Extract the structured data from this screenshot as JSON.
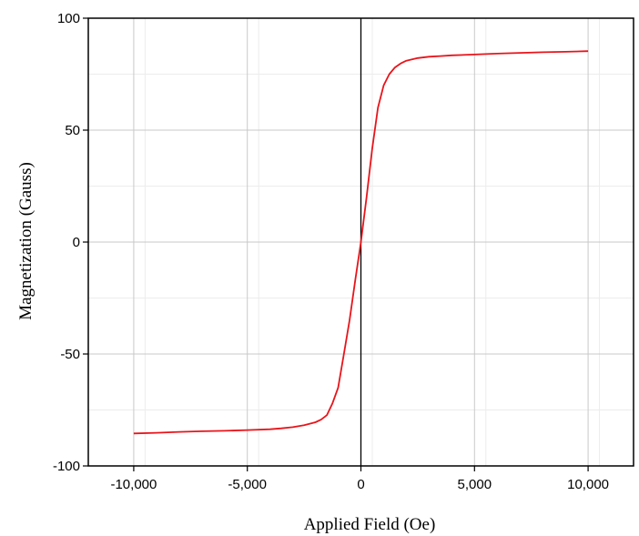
{
  "chart_data": {
    "type": "line",
    "title": "",
    "xlabel": "Applied Field (Oe)",
    "ylabel": "Magnetization (Gauss)",
    "xlim": [
      -12000,
      12000
    ],
    "ylim": [
      -100,
      100
    ],
    "grid": true,
    "x_ticks": [
      -10000,
      -5000,
      0,
      5000,
      10000
    ],
    "x_tick_labels": [
      "-10,000",
      "-5,000",
      "0",
      "5,000",
      "10,000"
    ],
    "y_ticks": [
      -100,
      -50,
      0,
      50,
      100
    ],
    "y_tick_labels": [
      "-100",
      "-50",
      "0",
      "50",
      "100"
    ],
    "series": [
      {
        "color": "#e8141a",
        "x": [
          -10000,
          -9000,
          -8000,
          -7000,
          -6000,
          -5000,
          -4000,
          -3500,
          -3000,
          -2500,
          -2000,
          -1750,
          -1500,
          -1250,
          -1000,
          -750,
          -500,
          -250,
          0,
          250,
          500,
          750,
          1000,
          1250,
          1500,
          1750,
          2000,
          2500,
          3000,
          3500,
          4000,
          5000,
          6000,
          7000,
          8000,
          9000,
          10000
        ],
        "y": [
          -85.5,
          -85.2,
          -84.8,
          -84.5,
          -84.3,
          -84.0,
          -83.6,
          -83.2,
          -82.7,
          -81.8,
          -80.5,
          -79.3,
          -77.3,
          -72,
          -65,
          -50,
          -35,
          -17,
          0,
          20,
          42,
          60,
          70,
          75,
          78,
          79.8,
          81,
          82.2,
          82.8,
          83.1,
          83.4,
          83.8,
          84.2,
          84.5,
          84.8,
          85.0,
          85.3
        ]
      }
    ]
  }
}
